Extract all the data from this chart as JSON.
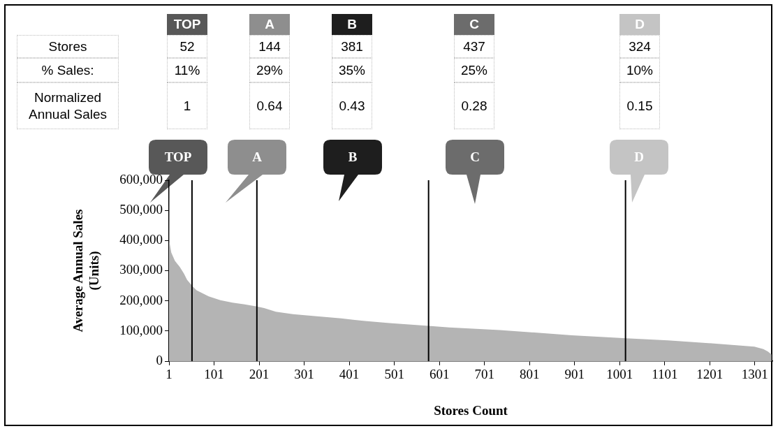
{
  "chart_data": {
    "type": "area",
    "xlabel": "Stores Count",
    "ylabel": "Average Annual Sales (Units)",
    "x": [
      1,
      2,
      6,
      14,
      25,
      34,
      41,
      52,
      62,
      89,
      115,
      142,
      169,
      196,
      212,
      238,
      276,
      329,
      383,
      436,
      490,
      577,
      623,
      735,
      895,
      1015,
      1108,
      1215,
      1300,
      1320,
      1330,
      1338
    ],
    "values": [
      570000,
      395000,
      360000,
      333000,
      312000,
      291000,
      270000,
      250000,
      235000,
      215000,
      202000,
      194000,
      188000,
      181000,
      176000,
      164000,
      156000,
      149000,
      142000,
      133000,
      126000,
      117000,
      112000,
      103000,
      86000,
      76000,
      69000,
      58000,
      48000,
      40000,
      32000,
      22000
    ],
    "color": "#b4b4b4",
    "marker": "none",
    "grid": false,
    "legend": false,
    "xlim": [
      1,
      1340
    ],
    "xticks": [
      1,
      101,
      201,
      301,
      401,
      501,
      601,
      701,
      801,
      901,
      1001,
      1101,
      1201,
      1301
    ],
    "ylim": [
      0,
      600000
    ],
    "yticks": [
      0,
      {
        "value": 100000,
        "label": "100,000"
      },
      {
        "value": 200000,
        "label": "200,000"
      },
      {
        "value": 300000,
        "label": "300,000"
      },
      {
        "value": 400000,
        "label": "400,000"
      },
      {
        "value": 500000,
        "label": "500,000"
      },
      {
        "value": 600000,
        "label": "600,000"
      }
    ],
    "ref_lines": [
      {
        "axis": "x",
        "value": 52,
        "color": "#000000"
      },
      {
        "axis": "x",
        "value": 196,
        "color": "#000000"
      },
      {
        "axis": "x",
        "value": 577,
        "color": "#000000"
      },
      {
        "axis": "x",
        "value": 1014,
        "color": "#000000"
      }
    ],
    "annotations": [
      "Stores",
      "% Sales:",
      "Normalized Annual Sales",
      "TOP",
      "52",
      "11%",
      "1",
      "A",
      "144",
      "29%",
      "0.64",
      "B",
      "381",
      "35%",
      "0.43",
      "C",
      "437",
      "25%",
      "0.28",
      "D",
      "324",
      "10%",
      "0.15"
    ]
  }
}
